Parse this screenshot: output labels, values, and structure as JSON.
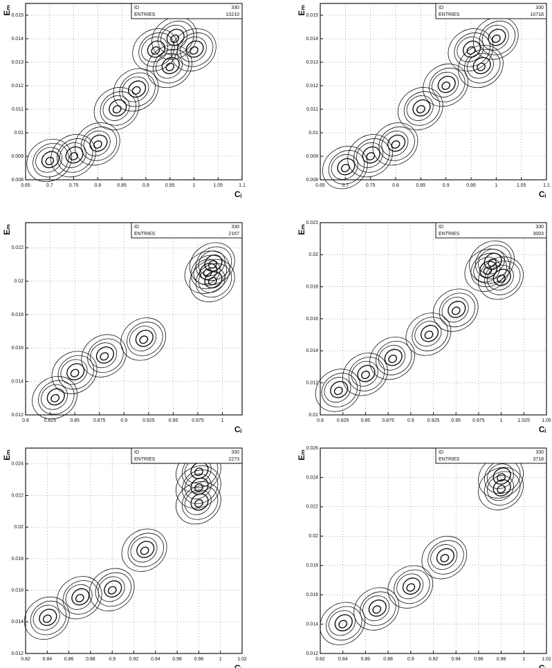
{
  "chart_data": [
    {
      "type": "contour",
      "xlabel": "Cᵢ",
      "ylabel": "Eₘ",
      "stats": [
        [
          "ID",
          "330"
        ],
        [
          "ENTRIES",
          "10210"
        ]
      ],
      "x": [
        0.92,
        0.96,
        1.0,
        0.95,
        0.88,
        0.84,
        0.8,
        0.75,
        0.7
      ],
      "y": [
        0.0135,
        0.014,
        0.0135,
        0.0128,
        0.0118,
        0.011,
        0.0095,
        0.009,
        0.0088
      ],
      "xlim": [
        0.65,
        1.1
      ],
      "xticks": [
        0.65,
        0.7,
        0.75,
        0.8,
        0.85,
        0.9,
        0.95,
        1,
        1.05,
        1.1
      ],
      "ylim": [
        0.008,
        0.0155
      ],
      "yticks": [
        0.008,
        0.009,
        0.01,
        0.011,
        0.012,
        0.013,
        0.014,
        0.015
      ],
      "grid": true,
      "color": "#111111"
    },
    {
      "type": "contour",
      "xlabel": "Cᵢ",
      "ylabel": "Eₘ",
      "stats": [
        [
          "ID",
          "330"
        ],
        [
          "ENTRIES",
          "10718"
        ]
      ],
      "x": [
        0.95,
        1.0,
        0.97,
        0.9,
        0.85,
        0.8,
        0.75,
        0.7
      ],
      "y": [
        0.0135,
        0.014,
        0.0128,
        0.012,
        0.011,
        0.0095,
        0.009,
        0.0085
      ],
      "xlim": [
        0.65,
        1.1
      ],
      "xticks": [
        0.65,
        0.7,
        0.75,
        0.8,
        0.85,
        0.9,
        0.95,
        1,
        1.05,
        1.1
      ],
      "ylim": [
        0.008,
        0.0155
      ],
      "yticks": [
        0.008,
        0.009,
        0.01,
        0.011,
        0.012,
        0.013,
        0.014,
        0.015
      ],
      "grid": true,
      "color": "#111111"
    },
    {
      "type": "contour",
      "xlabel": "Cᵢ",
      "ylabel": "Eₘ",
      "stats": [
        [
          "ID",
          "330"
        ],
        [
          "ENTRIES",
          "2167"
        ]
      ],
      "x": [
        0.99,
        0.985,
        0.99,
        0.92,
        0.88,
        0.85,
        0.83
      ],
      "y": [
        0.021,
        0.0205,
        0.02,
        0.0165,
        0.0155,
        0.0145,
        0.013
      ],
      "xlim": [
        0.8,
        1.02
      ],
      "xticks": [
        0.8,
        0.825,
        0.85,
        0.875,
        0.9,
        0.925,
        0.95,
        0.975,
        1
      ],
      "ylim": [
        0.012,
        0.0235
      ],
      "yticks": [
        0.012,
        0.014,
        0.016,
        0.018,
        0.02,
        0.022
      ],
      "grid": true,
      "color": "#111111"
    },
    {
      "type": "contour",
      "xlabel": "Cᵢ",
      "ylabel": "Eₘ",
      "stats": [
        [
          "ID",
          "330"
        ],
        [
          "ENTRIES",
          "3003"
        ]
      ],
      "x": [
        0.99,
        0.985,
        1.0,
        0.95,
        0.92,
        0.88,
        0.85,
        0.82
      ],
      "y": [
        0.0195,
        0.019,
        0.0185,
        0.0165,
        0.015,
        0.0135,
        0.0125,
        0.0115
      ],
      "xlim": [
        0.8,
        1.05
      ],
      "xticks": [
        0.8,
        0.825,
        0.85,
        0.875,
        0.9,
        0.925,
        0.95,
        0.975,
        1,
        1.025,
        1.05
      ],
      "ylim": [
        0.01,
        0.022
      ],
      "yticks": [
        0.01,
        0.012,
        0.014,
        0.016,
        0.018,
        0.02,
        0.022
      ],
      "grid": true,
      "color": "#111111"
    },
    {
      "type": "contour",
      "xlabel": "Cᵢ",
      "ylabel": "Eₘ",
      "stats": [
        [
          "ID",
          "330"
        ],
        [
          "ENTRIES",
          "2273"
        ]
      ],
      "x": [
        0.98,
        0.98,
        0.98,
        0.93,
        0.9,
        0.87,
        0.84
      ],
      "y": [
        0.0235,
        0.0225,
        0.0215,
        0.0185,
        0.016,
        0.0155,
        0.0142
      ],
      "xlim": [
        0.82,
        1.02
      ],
      "xticks": [
        0.82,
        0.84,
        0.86,
        0.88,
        0.9,
        0.92,
        0.94,
        0.96,
        0.98,
        1,
        1.02
      ],
      "ylim": [
        0.012,
        0.025
      ],
      "yticks": [
        0.012,
        0.014,
        0.016,
        0.018,
        0.02,
        0.022,
        0.024
      ],
      "grid": true,
      "color": "#111111"
    },
    {
      "type": "contour",
      "xlabel": "Cᵢ",
      "ylabel": "Eₘ",
      "stats": [
        [
          "ID",
          "330"
        ],
        [
          "ENTRIES",
          "3718"
        ]
      ],
      "x": [
        0.98,
        0.98,
        0.93,
        0.9,
        0.87,
        0.84
      ],
      "y": [
        0.024,
        0.0232,
        0.0185,
        0.0165,
        0.015,
        0.014
      ],
      "xlim": [
        0.82,
        1.02
      ],
      "xticks": [
        0.82,
        0.84,
        0.86,
        0.88,
        0.9,
        0.92,
        0.94,
        0.96,
        0.98,
        1,
        1.02
      ],
      "ylim": [
        0.012,
        0.026
      ],
      "yticks": [
        0.012,
        0.014,
        0.016,
        0.018,
        0.02,
        0.022,
        0.024,
        0.026
      ],
      "grid": true,
      "color": "#111111"
    }
  ]
}
